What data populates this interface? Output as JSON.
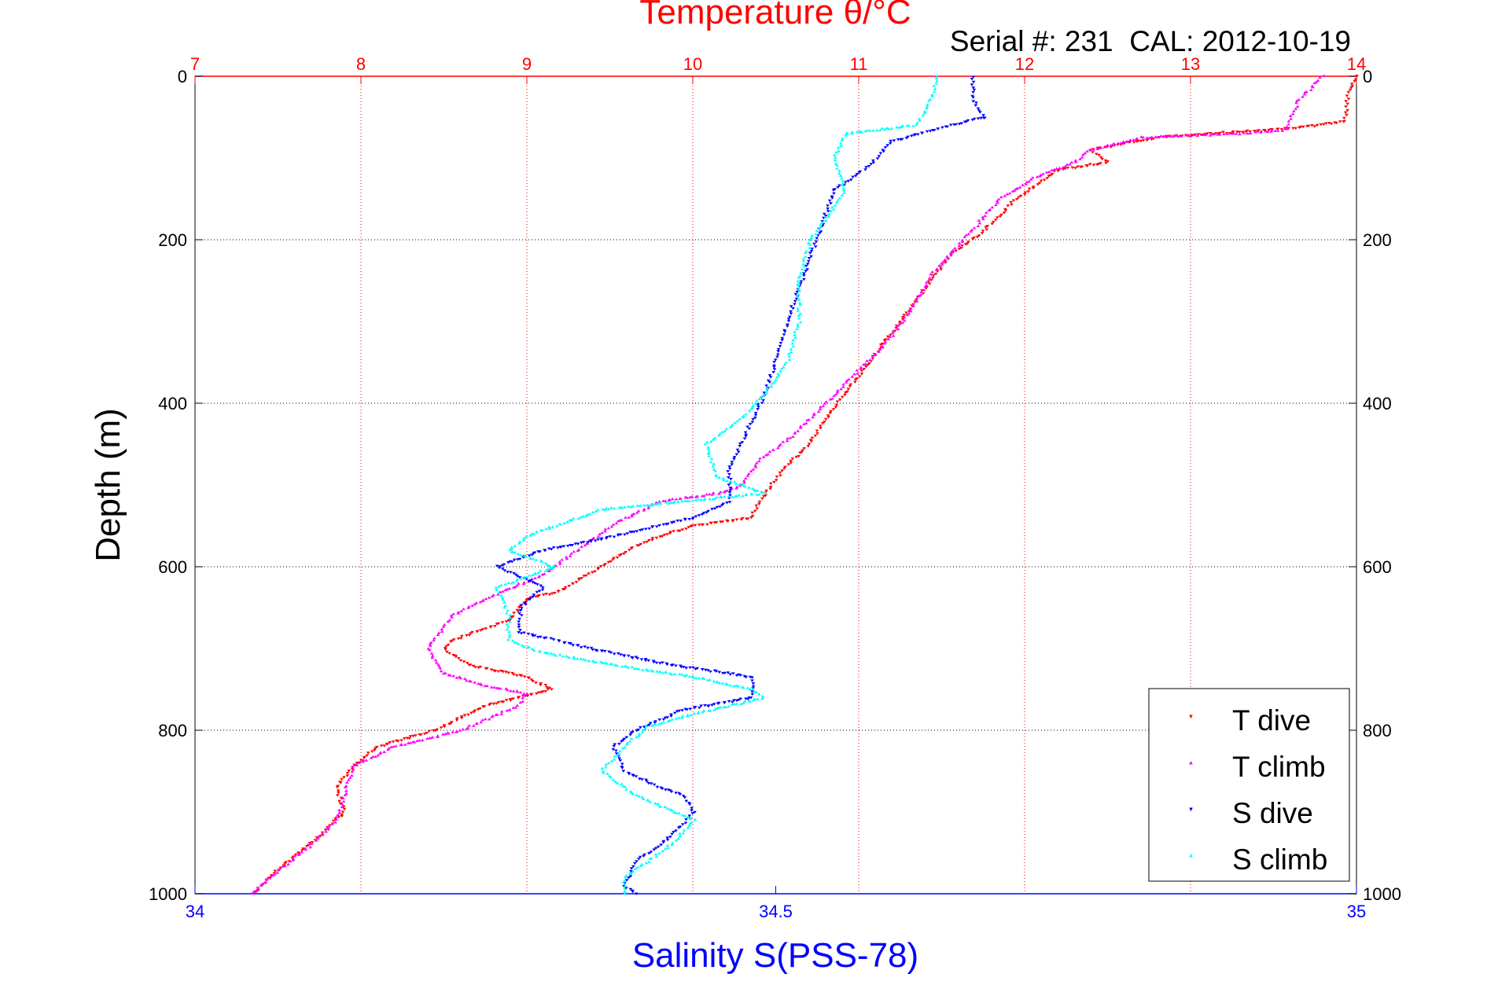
{
  "chart_data": {
    "type": "scatter",
    "title": "Temperature θ/°C",
    "subtitle": "Serial #: 231  CAL: 2012-10-19",
    "ylabel": "Depth (m)",
    "xlabel": "Salinity S(PSS-78)",
    "temperature_axis": {
      "range": [
        7,
        14
      ],
      "ticks": [
        "7",
        "8",
        "9",
        "10",
        "11",
        "12",
        "13",
        "14"
      ],
      "color": "#ff0000",
      "position": "top"
    },
    "salinity_axis": {
      "range": [
        34,
        35
      ],
      "ticks": [
        "34",
        "34.5",
        "35"
      ],
      "color": "#0000ff",
      "position": "bottom"
    },
    "depth_axis": {
      "range": [
        0,
        1000
      ],
      "reversed": true,
      "ticks": [
        "0",
        "200",
        "400",
        "600",
        "800",
        "1000"
      ]
    },
    "grid": true,
    "legend_position": "bottom-right",
    "series": [
      {
        "name": "T dive",
        "axis": "temperature",
        "color": "#ff0000",
        "marker": "triangle-down",
        "points": [
          [
            14.0,
            0
          ],
          [
            13.95,
            20
          ],
          [
            13.93,
            55
          ],
          [
            13.7,
            62
          ],
          [
            12.8,
            75
          ],
          [
            12.4,
            90
          ],
          [
            12.5,
            105
          ],
          [
            12.2,
            115
          ],
          [
            11.95,
            150
          ],
          [
            11.75,
            190
          ],
          [
            11.55,
            220
          ],
          [
            11.4,
            260
          ],
          [
            11.25,
            300
          ],
          [
            11.1,
            340
          ],
          [
            10.95,
            380
          ],
          [
            10.8,
            420
          ],
          [
            10.7,
            450
          ],
          [
            10.55,
            480
          ],
          [
            10.4,
            520
          ],
          [
            10.35,
            540
          ],
          [
            10.0,
            550
          ],
          [
            9.7,
            570
          ],
          [
            9.45,
            600
          ],
          [
            9.2,
            630
          ],
          [
            9.0,
            640
          ],
          [
            8.9,
            665
          ],
          [
            8.55,
            690
          ],
          [
            8.5,
            700
          ],
          [
            8.65,
            720
          ],
          [
            9.0,
            735
          ],
          [
            9.15,
            750
          ],
          [
            8.75,
            770
          ],
          [
            8.45,
            800
          ],
          [
            8.1,
            820
          ],
          [
            7.95,
            845
          ],
          [
            7.85,
            870
          ],
          [
            7.9,
            900
          ],
          [
            7.75,
            930
          ],
          [
            7.5,
            970
          ],
          [
            7.35,
            1000
          ]
        ]
      },
      {
        "name": "T climb",
        "axis": "temperature",
        "color": "#ff00ff",
        "marker": "triangle-up",
        "points": [
          [
            13.8,
            0
          ],
          [
            13.65,
            30
          ],
          [
            13.58,
            65
          ],
          [
            13.3,
            70
          ],
          [
            12.7,
            75
          ],
          [
            12.4,
            90
          ],
          [
            12.3,
            105
          ],
          [
            12.1,
            120
          ],
          [
            11.85,
            150
          ],
          [
            11.7,
            185
          ],
          [
            11.45,
            240
          ],
          [
            11.3,
            290
          ],
          [
            11.15,
            330
          ],
          [
            10.95,
            370
          ],
          [
            10.75,
            410
          ],
          [
            10.6,
            440
          ],
          [
            10.4,
            470
          ],
          [
            10.3,
            500
          ],
          [
            10.15,
            510
          ],
          [
            9.8,
            520
          ],
          [
            9.55,
            545
          ],
          [
            9.3,
            580
          ],
          [
            9.1,
            610
          ],
          [
            8.85,
            630
          ],
          [
            8.55,
            660
          ],
          [
            8.4,
            700
          ],
          [
            8.5,
            730
          ],
          [
            8.75,
            745
          ],
          [
            9.0,
            755
          ],
          [
            8.95,
            770
          ],
          [
            8.6,
            800
          ],
          [
            8.2,
            820
          ],
          [
            7.95,
            845
          ],
          [
            7.9,
            880
          ],
          [
            7.85,
            910
          ],
          [
            7.7,
            940
          ],
          [
            7.45,
            980
          ],
          [
            7.35,
            1000
          ]
        ]
      },
      {
        "name": "S dive",
        "axis": "salinity",
        "color": "#0000ff",
        "marker": "triangle-down",
        "points": [
          [
            34.67,
            0
          ],
          [
            34.67,
            30
          ],
          [
            34.68,
            50
          ],
          [
            34.65,
            60
          ],
          [
            34.6,
            80
          ],
          [
            34.58,
            110
          ],
          [
            34.55,
            140
          ],
          [
            34.54,
            180
          ],
          [
            34.53,
            220
          ],
          [
            34.52,
            260
          ],
          [
            34.51,
            300
          ],
          [
            34.5,
            350
          ],
          [
            34.49,
            390
          ],
          [
            34.48,
            420
          ],
          [
            34.47,
            450
          ],
          [
            34.46,
            480
          ],
          [
            34.46,
            520
          ],
          [
            34.43,
            540
          ],
          [
            34.37,
            560
          ],
          [
            34.3,
            580
          ],
          [
            34.26,
            600
          ],
          [
            34.3,
            625
          ],
          [
            34.28,
            650
          ],
          [
            34.28,
            680
          ],
          [
            34.34,
            700
          ],
          [
            34.41,
            720
          ],
          [
            34.48,
            735
          ],
          [
            34.48,
            760
          ],
          [
            34.42,
            775
          ],
          [
            34.38,
            800
          ],
          [
            34.36,
            820
          ],
          [
            34.37,
            850
          ],
          [
            34.4,
            870
          ],
          [
            34.42,
            880
          ],
          [
            34.43,
            900
          ],
          [
            34.41,
            930
          ],
          [
            34.38,
            960
          ],
          [
            34.37,
            990
          ],
          [
            34.38,
            1000
          ]
        ]
      },
      {
        "name": "S climb",
        "axis": "salinity",
        "color": "#00ffff",
        "marker": "triangle-up",
        "points": [
          [
            34.64,
            0
          ],
          [
            34.63,
            40
          ],
          [
            34.62,
            60
          ],
          [
            34.56,
            70
          ],
          [
            34.55,
            100
          ],
          [
            34.56,
            140
          ],
          [
            34.55,
            160
          ],
          [
            34.53,
            200
          ],
          [
            34.52,
            250
          ],
          [
            34.52,
            300
          ],
          [
            34.51,
            350
          ],
          [
            34.49,
            390
          ],
          [
            34.47,
            420
          ],
          [
            34.44,
            450
          ],
          [
            34.45,
            490
          ],
          [
            34.49,
            510
          ],
          [
            34.35,
            530
          ],
          [
            34.32,
            545
          ],
          [
            34.29,
            560
          ],
          [
            34.27,
            580
          ],
          [
            34.31,
            600
          ],
          [
            34.26,
            625
          ],
          [
            34.27,
            660
          ],
          [
            34.27,
            690
          ],
          [
            34.3,
            705
          ],
          [
            34.36,
            720
          ],
          [
            34.43,
            735
          ],
          [
            34.48,
            750
          ],
          [
            34.49,
            760
          ],
          [
            34.43,
            780
          ],
          [
            34.39,
            795
          ],
          [
            34.37,
            820
          ],
          [
            34.35,
            850
          ],
          [
            34.38,
            880
          ],
          [
            34.43,
            910
          ],
          [
            34.41,
            940
          ],
          [
            34.39,
            960
          ],
          [
            34.37,
            980
          ],
          [
            34.37,
            1000
          ]
        ]
      }
    ]
  }
}
